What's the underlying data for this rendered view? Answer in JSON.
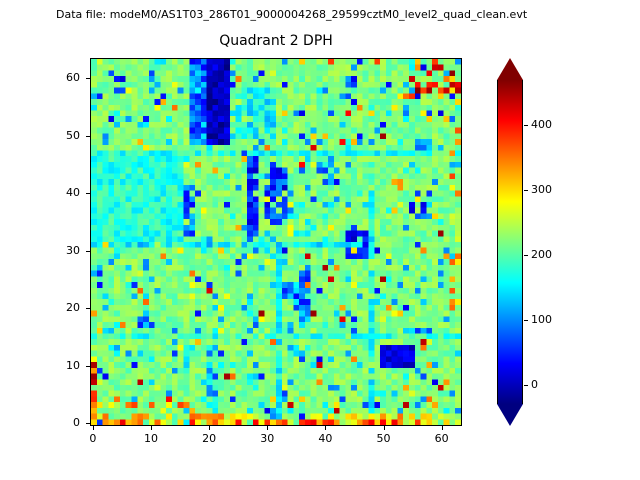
{
  "header": {
    "datafile_label": "Data file: modeM0/AS1T03_286T01_9000004268_29599cztM0_level2_quad_clean.evt"
  },
  "chart_data": {
    "type": "heatmap",
    "title": "Quadrant 2 DPH",
    "xlabel": "",
    "ylabel": "",
    "x_ticks": [
      0,
      10,
      20,
      30,
      40,
      50,
      60
    ],
    "y_ticks": [
      0,
      10,
      20,
      30,
      40,
      50,
      60
    ],
    "x_range": [
      0,
      64
    ],
    "y_range": [
      0,
      64
    ],
    "colorbar": {
      "ticks": [
        0,
        100,
        200,
        300,
        400
      ],
      "vmin": -30,
      "vmax": 470,
      "extend": "both"
    },
    "colormap": {
      "name": "jet",
      "stops": [
        [
          0,
          "#000080"
        ],
        [
          0.125,
          "#0000ff"
        ],
        [
          0.375,
          "#00ffff"
        ],
        [
          0.625,
          "#ffff00"
        ],
        [
          0.875,
          "#ff0000"
        ],
        [
          1,
          "#800000"
        ]
      ]
    },
    "heatmap": {
      "grid": 64,
      "seed": 987654,
      "base": 220,
      "base_jitter": 28,
      "speckles": [
        {
          "prob": 0.07,
          "value": 135,
          "jitter": 40
        },
        {
          "prob": 0.035,
          "value": 70,
          "jitter": 50
        },
        {
          "prob": 0.03,
          "value": 310,
          "jitter": 50
        },
        {
          "prob": 0.008,
          "value": 430,
          "jitter": 30
        }
      ],
      "features": [
        {
          "name": "cyan-band-left",
          "x": 0,
          "y": 32,
          "w": 16,
          "h": 16,
          "value": 175,
          "jitter": 35,
          "prob": 1
        },
        {
          "name": "blue-column-top",
          "x": 17,
          "y": 49,
          "w": 3,
          "h": 15,
          "value": 95,
          "jitter": 65,
          "prob": 1
        },
        {
          "name": "dark-column-top",
          "x": 20,
          "y": 49,
          "w": 4,
          "h": 15,
          "value": 0,
          "jitter": 35,
          "prob": 1
        },
        {
          "name": "cyan-patch-top",
          "x": 25,
          "y": 50,
          "w": 7,
          "h": 9,
          "value": 160,
          "jitter": 45,
          "prob": 0.85
        },
        {
          "name": "dark-streak-mid-a",
          "x": 27,
          "y": 33,
          "w": 2,
          "h": 14,
          "value": 45,
          "jitter": 45,
          "prob": 0.9
        },
        {
          "name": "dark-streak-mid-b",
          "x": 30,
          "y": 35,
          "w": 4,
          "h": 10,
          "value": 60,
          "jitter": 55,
          "prob": 0.8
        },
        {
          "name": "dark-spot-col16",
          "x": 16,
          "y": 33,
          "w": 2,
          "h": 9,
          "value": 85,
          "jitter": 55,
          "prob": 0.8
        },
        {
          "name": "dark-blob-mid-right",
          "x": 44,
          "y": 29,
          "w": 4,
          "h": 5,
          "value": 30,
          "jitter": 35,
          "prob": 0.95
        },
        {
          "name": "dark-blob-low-right",
          "x": 50,
          "y": 10,
          "w": 6,
          "h": 4,
          "value": 15,
          "jitter": 30,
          "prob": 0.95
        },
        {
          "name": "dark-streak-col37",
          "x": 36,
          "y": 18,
          "w": 2,
          "h": 9,
          "value": 95,
          "jitter": 60,
          "prob": 0.7
        },
        {
          "name": "cyan-vline-16-low",
          "x": 16,
          "y": 0,
          "w": 1,
          "h": 16,
          "value": 170,
          "jitter": 40,
          "prob": 0.7
        },
        {
          "name": "cyan-vline-32",
          "x": 32,
          "y": 0,
          "w": 1,
          "h": 32,
          "value": 150,
          "jitter": 35,
          "prob": 0.9
        },
        {
          "name": "cyan-vline-48",
          "x": 48,
          "y": 0,
          "w": 1,
          "h": 48,
          "value": 160,
          "jitter": 35,
          "prob": 0.85
        },
        {
          "name": "boundary-row-16",
          "x": 0,
          "y": 15,
          "w": 64,
          "h": 1,
          "value": 180,
          "jitter": 45,
          "prob": 0.8
        },
        {
          "name": "boundary-row-32",
          "x": 0,
          "y": 31,
          "w": 48,
          "h": 1,
          "value": 150,
          "jitter": 45,
          "prob": 0.8
        },
        {
          "name": "boundary-row-48",
          "x": 0,
          "y": 47,
          "w": 64,
          "h": 1,
          "value": 175,
          "jitter": 45,
          "prob": 0.7
        },
        {
          "name": "dark-blob-39",
          "x": 39,
          "y": 42,
          "w": 3,
          "h": 4,
          "value": 70,
          "jitter": 55,
          "prob": 0.8
        },
        {
          "name": "dark-blob-34-23",
          "x": 33,
          "y": 22,
          "w": 3,
          "h": 3,
          "value": 85,
          "jitter": 60,
          "prob": 0.7
        },
        {
          "name": "blue-streak-col20-low",
          "x": 20,
          "y": 2,
          "w": 2,
          "h": 12,
          "value": 125,
          "jitter": 70,
          "prob": 0.6
        },
        {
          "name": "dark-spot-9-18",
          "x": 8,
          "y": 17,
          "w": 3,
          "h": 3,
          "value": 95,
          "jitter": 60,
          "prob": 0.6
        },
        {
          "name": "dark-dots-topleft",
          "x": 4,
          "y": 58,
          "w": 3,
          "h": 3,
          "value": 60,
          "jitter": 55,
          "prob": 0.5
        },
        {
          "name": "dark-dash-top-44",
          "x": 44,
          "y": 56,
          "w": 2,
          "h": 5,
          "value": 70,
          "jitter": 50,
          "prob": 0.7
        },
        {
          "name": "dark-dot-57-49",
          "x": 56,
          "y": 48,
          "w": 3,
          "h": 2,
          "value": 90,
          "jitter": 60,
          "prob": 0.6
        },
        {
          "name": "dark-blob-56-37",
          "x": 55,
          "y": 36,
          "w": 3,
          "h": 3,
          "value": 60,
          "jitter": 55,
          "prob": 0.7
        },
        {
          "name": "cyan-region-mid",
          "x": 34,
          "y": 33,
          "w": 6,
          "h": 8,
          "value": 190,
          "jitter": 45,
          "prob": 0.5
        },
        {
          "name": "topright-hot-speckles",
          "x": 55,
          "y": 56,
          "w": 9,
          "h": 8,
          "value": 380,
          "jitter": 90,
          "prob": 0.22
        },
        {
          "name": "top-row-speckles",
          "x": 0,
          "y": 63,
          "w": 64,
          "h": 1,
          "value": 300,
          "jitter": 80,
          "prob": 0.15
        },
        {
          "name": "hot-right-edge",
          "x": 62,
          "y": 18,
          "w": 2,
          "h": 34,
          "value": 300,
          "jitter": 90,
          "prob": 0.2
        },
        {
          "name": "orange-speckles-bottom",
          "x": 1,
          "y": 1,
          "w": 18,
          "h": 3,
          "value": 320,
          "jitter": 60,
          "prob": 0.25
        },
        {
          "name": "bottom-row-2",
          "x": 0,
          "y": 1,
          "w": 64,
          "h": 1,
          "value": 285,
          "jitter": 70,
          "prob": 0.6
        },
        {
          "name": "bottom-row-hot",
          "x": 0,
          "y": 0,
          "w": 64,
          "h": 1,
          "value": 335,
          "jitter": 85,
          "prob": 0.75
        },
        {
          "name": "left-edge-hot",
          "x": 0,
          "y": 0,
          "w": 1,
          "h": 12,
          "value": 365,
          "jitter": 95,
          "prob": 0.85
        }
      ]
    }
  }
}
